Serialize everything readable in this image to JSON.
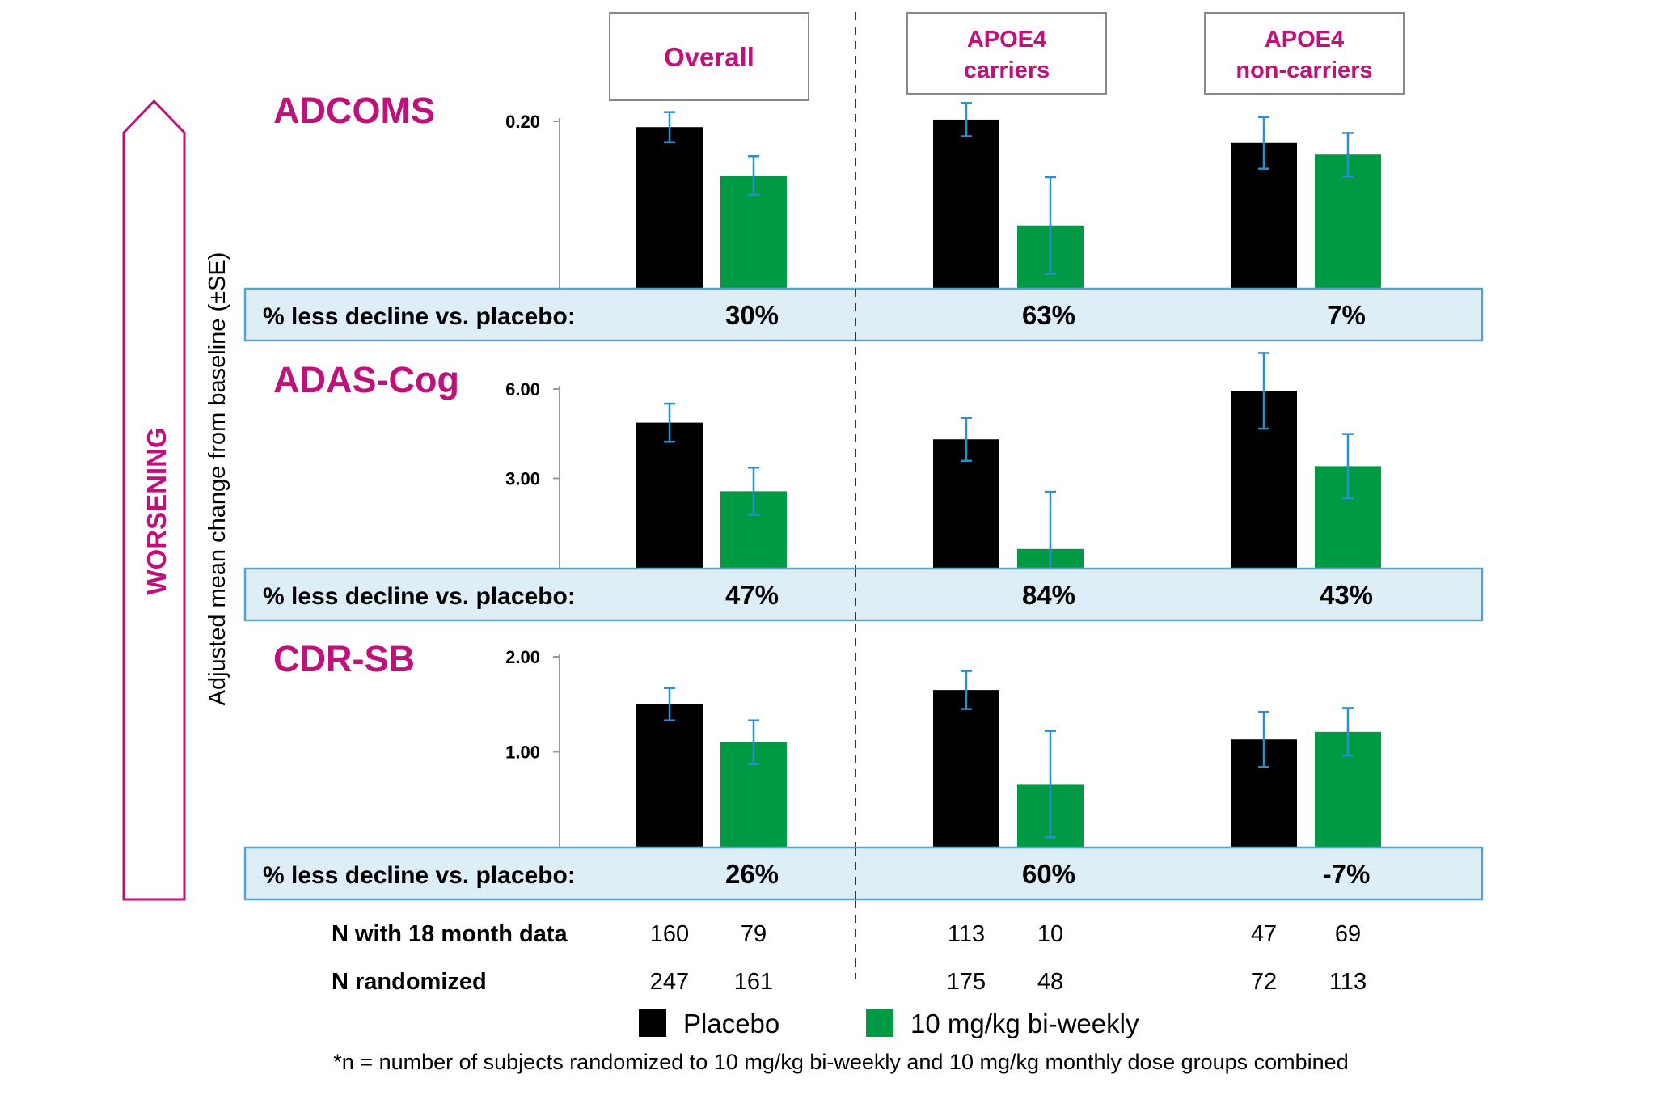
{
  "colors": {
    "placebo": "#000000",
    "treatment": "#009a44",
    "accent": "#c0117a",
    "band_fill": "#ddeef6",
    "band_stroke": "#5aa2c8",
    "error_bar": "#2a8fd0"
  },
  "chart_data": {
    "type": "bar",
    "side_label": "WORSENING",
    "ylabel": "Adjusted mean change from baseline (±SE)",
    "groups": [
      "Overall",
      "APOE4 carriers",
      "APOE4 non-carriers"
    ],
    "series_names": [
      "Placebo",
      "10 mg/kg bi-weekly"
    ],
    "panels": [
      {
        "title": "ADCOMS",
        "ylim": [
          0.0,
          0.2
        ],
        "yticks": [
          {
            "value": 0.2,
            "label": "0.20"
          }
        ],
        "placebo": [
          0.193,
          0.202,
          0.174
        ],
        "placebo_se": [
          0.018,
          0.02,
          0.031
        ],
        "treatment": [
          0.135,
          0.075,
          0.16
        ],
        "treatment_se": [
          0.023,
          0.058,
          0.026
        ],
        "band_label": "% less decline vs. placebo:",
        "pct": [
          "30%",
          "63%",
          "7%"
        ]
      },
      {
        "title": "ADAS-Cog",
        "ylim": [
          0.0,
          6.0
        ],
        "yticks": [
          {
            "value": 6.0,
            "label": "6.00"
          },
          {
            "value": 3.0,
            "label": "3.00"
          }
        ],
        "placebo": [
          4.87,
          4.31,
          5.94
        ],
        "placebo_se": [
          0.64,
          0.72,
          1.27
        ],
        "treatment": [
          2.57,
          0.63,
          3.41
        ],
        "treatment_se": [
          0.79,
          1.92,
          1.08
        ],
        "band_label": "% less decline vs. placebo:",
        "pct": [
          "47%",
          "84%",
          "43%"
        ]
      },
      {
        "title": "CDR-SB",
        "ylim": [
          0.0,
          2.0
        ],
        "yticks": [
          {
            "value": 2.0,
            "label": "2.00"
          },
          {
            "value": 1.0,
            "label": "1.00"
          }
        ],
        "placebo": [
          1.5,
          1.65,
          1.13
        ],
        "placebo_se": [
          0.17,
          0.2,
          0.29
        ],
        "treatment": [
          1.1,
          0.66,
          1.21
        ],
        "treatment_se": [
          0.23,
          0.56,
          0.25
        ],
        "band_label": "% less decline vs. placebo:",
        "pct": [
          "26%",
          "60%",
          "-7%"
        ]
      }
    ],
    "n_table": [
      {
        "label": "N with 18 month data",
        "values": [
          "160",
          "79",
          "113",
          "10",
          "47",
          "69"
        ]
      },
      {
        "label": "N randomized",
        "values": [
          "247",
          "161",
          "175",
          "48",
          "72",
          "113"
        ]
      }
    ],
    "legend": [
      {
        "label": "Placebo",
        "color": "#000000"
      },
      {
        "label": "10 mg/kg bi-weekly",
        "color": "#009a44"
      }
    ],
    "footnote": "*n = number of subjects randomized to 10 mg/kg bi-weekly and 10 mg/kg monthly dose groups combined"
  }
}
